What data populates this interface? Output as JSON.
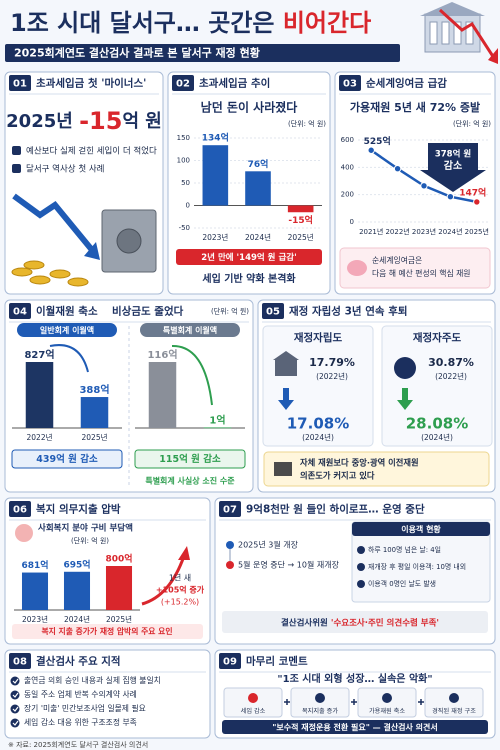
{
  "header": {
    "title": "1조 시대 달서구… 곳간은 ",
    "title_highlight": "비어간다",
    "subtitle": "2025회계연도 결산검사 결과로 본 달서구 재정 현황"
  },
  "panel01": {
    "number": "01",
    "title": "초과세입금 첫 '마이너스'",
    "headline_year": "2025년 ",
    "headline_value": "-15",
    "headline_unit": "억 원",
    "bullets": [
      "예산보다 실제 걷힌 세입이 더 적었다",
      "달서구 역사상 첫 사례"
    ]
  },
  "panel02": {
    "number": "02",
    "title": "초과세입금 추이",
    "headline": "남던 돈이 사라졌다",
    "unit": "(단위: 억 원)",
    "chart": {
      "type": "bar",
      "categories": [
        "2023년",
        "2024년",
        "2025년"
      ],
      "values": [
        134,
        76,
        -15
      ],
      "value_labels": [
        "134억",
        "76억",
        "-15억"
      ],
      "colors": [
        "#1f5bb5",
        "#1f5bb5",
        "#d9262c"
      ],
      "ylim": [
        -50,
        150
      ],
      "yticks": [
        -50,
        0,
        50,
        100,
        150
      ]
    },
    "note": "2년 만에 '149억 원 급감'",
    "footer": "세입 기반 약화 본격화"
  },
  "panel03": {
    "number": "03",
    "title": "순세계잉여금 급감",
    "headline": "가용재원 5년 새 72% 증발",
    "unit": "(단위: 억 원)",
    "chart": {
      "type": "line",
      "categories": [
        "2021년",
        "2022년",
        "2023년",
        "2024년",
        "2025년"
      ],
      "values": [
        525,
        390,
        265,
        185,
        147
      ],
      "value_labels": [
        "525억",
        null,
        null,
        null,
        "147억"
      ],
      "color": "#1f5bb5",
      "ylim": [
        0,
        600
      ],
      "yticks": [
        0,
        200,
        400,
        600
      ]
    },
    "callout": [
      "378억 원",
      "감소"
    ],
    "note": [
      "순세계잉여금은",
      "다음 해 예산 편성의 핵심 재원"
    ]
  },
  "panel04": {
    "number": "04",
    "title": "이월재원 축소",
    "title2": "비상금도 줄었다",
    "unit": "(단위: 억 원)",
    "general": {
      "type": "bar",
      "label": "일반회계 이월액",
      "categories": [
        "2022년",
        "2025년"
      ],
      "values": [
        827,
        388
      ],
      "value_labels": [
        "827억",
        "388억"
      ],
      "colors": [
        "#1d3563",
        "#1f5bb5"
      ],
      "summary": "439억 원 감소"
    },
    "special": {
      "type": "bar",
      "label": "특별회계 이월액",
      "values": [
        116,
        1
      ],
      "value_labels": [
        "116억",
        "1억"
      ],
      "colors": [
        "#8a8f99",
        "#2e9e4f"
      ],
      "summary": "115억 원 감소",
      "note": "특별회계 사실상 소진 수준"
    }
  },
  "panel05": {
    "number": "05",
    "title": "재정 자립성 3년 연속 후퇴",
    "items": [
      {
        "name": "재정자립도",
        "before": "17.79%",
        "before_year": "(2022년)",
        "after": "17.08%",
        "after_year": "(2024년)"
      },
      {
        "name": "재정자주도",
        "before": "30.87%",
        "before_year": "(2022년)",
        "after": "28.08%",
        "after_year": "(2024년)"
      }
    ],
    "note": [
      "자체 재원보다 중앙·광역 이전재원",
      "의존도가 커지고 있다"
    ]
  },
  "panel06": {
    "number": "06",
    "title": "복지 의무지출 압박",
    "chart_title": "사회복지 분야 구비 부담액",
    "unit": "(단위: 억 원)",
    "chart": {
      "type": "bar",
      "categories": [
        "2023년",
        "2024년",
        "2025년"
      ],
      "values": [
        681,
        695,
        800
      ],
      "value_labels": [
        "681억",
        "695억",
        "800억"
      ],
      "colors": [
        "#1f5bb5",
        "#1f5bb5",
        "#d9262c"
      ]
    },
    "callout": [
      "1년 새",
      "+105억 증가",
      "(+15.2%)"
    ],
    "note": "복지 지출 증가가 재정 압박의 주요 요인"
  },
  "panel07": {
    "number": "07",
    "title": "9억8천만 원 들인 하이로프… 운영 중단",
    "timeline": [
      "2025년 3월 개장",
      "5월 운영 중단 → 10월 재개장"
    ],
    "box_title": "이용객 현황",
    "box_items": [
      "하루 100명 넘은 날: 4일",
      "재개장 후 평일 이용객: 10명 내외",
      "이용객 0명인 날도 발생"
    ],
    "note_prefix": "결산검사위원 ",
    "note": "'수요조사·주민 의견수렴 부족'"
  },
  "panel08": {
    "number": "08",
    "title": "결산검사 주요 지적",
    "items": [
      "출연금 의회 승인 내용과 실제 집행 불일치",
      "동일 주소 업체 반복 수의계약 사례",
      "장기 '미출' 민간보조사업 일몰제 필요",
      "세입 감소 대응 위한 구조조정 부족"
    ]
  },
  "panel09": {
    "number": "09",
    "title": "마무리 코멘트",
    "quote": "\"1조 시대 외형 성장… 실속은 악화\"",
    "icons": [
      "세입 감소",
      "복지지출 증가",
      "가용재원 축소",
      "경직된 재정 구조"
    ],
    "footer": "\"보수적 재정운용 전환 필요\" — 결산검사 의견서"
  },
  "source": "※ 자료: 2025회계연도 달서구 결산검사 의견서"
}
